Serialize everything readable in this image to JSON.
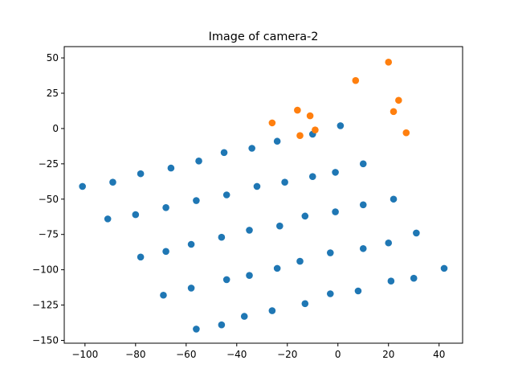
{
  "chart_data": {
    "type": "scatter",
    "title": "Image of camera-2",
    "xlabel": "",
    "ylabel": "",
    "xlim": [
      -108.2,
      49.3
    ],
    "ylim": [
      -152,
      58
    ],
    "xticks": [
      -100,
      -80,
      -60,
      -40,
      -20,
      0,
      20,
      40
    ],
    "yticks": [
      -150,
      -125,
      -100,
      -75,
      -50,
      -25,
      0,
      25,
      50
    ],
    "xtick_labels": [
      "−100",
      "−80",
      "−60",
      "−40",
      "−20",
      "0",
      "20",
      "40"
    ],
    "ytick_labels": [
      "−150",
      "−125",
      "−100",
      "−75",
      "−50",
      "−25",
      "0",
      "25",
      "50"
    ],
    "grid": false,
    "legend": "none",
    "series": [
      {
        "color": "#1f77b4",
        "points": [
          [
            -101,
            -41
          ],
          [
            -89,
            -38
          ],
          [
            -78,
            -32
          ],
          [
            -66,
            -28
          ],
          [
            -55,
            -23
          ],
          [
            -45,
            -17
          ],
          [
            -34,
            -14
          ],
          [
            -24,
            -9
          ],
          [
            -10,
            -4
          ],
          [
            1,
            2
          ],
          [
            -91,
            -64
          ],
          [
            -80,
            -61
          ],
          [
            -68,
            -56
          ],
          [
            -56,
            -51
          ],
          [
            -44,
            -47
          ],
          [
            -32,
            -41
          ],
          [
            -21,
            -38
          ],
          [
            -10,
            -34
          ],
          [
            -1,
            -31
          ],
          [
            10,
            -25
          ],
          [
            -78,
            -91
          ],
          [
            -68,
            -87
          ],
          [
            -58,
            -82
          ],
          [
            -46,
            -77
          ],
          [
            -35,
            -72
          ],
          [
            -23,
            -69
          ],
          [
            -13,
            -62
          ],
          [
            -1,
            -59
          ],
          [
            10,
            -54
          ],
          [
            22,
            -50
          ],
          [
            -69,
            -118
          ],
          [
            -58,
            -113
          ],
          [
            -44,
            -107
          ],
          [
            -35,
            -104
          ],
          [
            -24,
            -99
          ],
          [
            -15,
            -94
          ],
          [
            -3,
            -88
          ],
          [
            10,
            -85
          ],
          [
            20,
            -81
          ],
          [
            31,
            -74
          ],
          [
            -56,
            -142
          ],
          [
            -46,
            -139
          ],
          [
            -37,
            -133
          ],
          [
            -26,
            -129
          ],
          [
            -13,
            -124
          ],
          [
            -3,
            -117
          ],
          [
            8,
            -115
          ],
          [
            21,
            -108
          ],
          [
            30,
            -106
          ],
          [
            42,
            -99
          ]
        ]
      },
      {
        "color": "#ff7f0e",
        "points": [
          [
            -26,
            4
          ],
          [
            -15,
            -5
          ],
          [
            -16,
            13
          ],
          [
            -11,
            9
          ],
          [
            -9,
            -1
          ],
          [
            7,
            34
          ],
          [
            20,
            47
          ],
          [
            22,
            12
          ],
          [
            24,
            20
          ],
          [
            27,
            -3
          ]
        ]
      }
    ]
  }
}
